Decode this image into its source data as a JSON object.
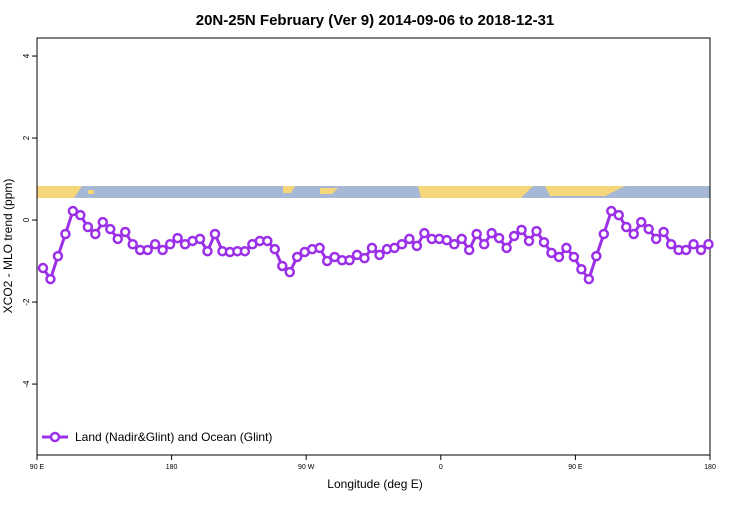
{
  "chart_data": {
    "type": "line",
    "title": "20N-25N February (Ver 9)   2014-09-06 to 2018-12-31",
    "x_label": "Longitude (deg E)",
    "y_label": "XCO2 - MLO trend (ppm)",
    "x": [
      94,
      99,
      104,
      109,
      114,
      119,
      124,
      129,
      134,
      139,
      144,
      149,
      154,
      159,
      164,
      169,
      174,
      179,
      184,
      189,
      194,
      199,
      204,
      209,
      214,
      219,
      224,
      229,
      234,
      239,
      244,
      249,
      254,
      259,
      264,
      269,
      274,
      279,
      284,
      289,
      294,
      299,
      304,
      309,
      314,
      319,
      324,
      329,
      334,
      339,
      344,
      349,
      354,
      359,
      364,
      369,
      374,
      379,
      384,
      389,
      394,
      399,
      404,
      409,
      414,
      419,
      424,
      429,
      434,
      439,
      444,
      449,
      454,
      459,
      464,
      469,
      474,
      479,
      484,
      489,
      494,
      499,
      504,
      509,
      514,
      519,
      524,
      529,
      534,
      539
    ],
    "series": [
      {
        "name": "Land (Nadir&Glint) and Ocean (Glint)",
        "color": "#9b30e8",
        "values": [
          -1.17,
          -1.44,
          -0.88,
          -0.34,
          0.22,
          0.12,
          -0.17,
          -0.34,
          -0.05,
          -0.22,
          -0.46,
          -0.29,
          -0.59,
          -0.73,
          -0.73,
          -0.59,
          -0.73,
          -0.59,
          -0.44,
          -0.59,
          -0.51,
          -0.46,
          -0.76,
          -0.34,
          -0.76,
          -0.78,
          -0.76,
          -0.76,
          -0.59,
          -0.51,
          -0.51,
          -0.71,
          -1.12,
          -1.27,
          -0.9,
          -0.78,
          -0.71,
          -0.68,
          -1.0,
          -0.9,
          -0.98,
          -0.98,
          -0.85,
          -0.93,
          -0.68,
          -0.85,
          -0.71,
          -0.68,
          -0.59,
          -0.46,
          -0.63,
          -0.32,
          -0.46,
          -0.46,
          -0.49,
          -0.59,
          -0.46,
          -0.73,
          -0.34,
          -0.59,
          -0.32,
          -0.44,
          -0.68,
          -0.39,
          -0.24,
          -0.51,
          -0.27,
          -0.54,
          -0.8,
          -0.9,
          -0.68,
          -0.9,
          -1.2,
          -1.44,
          -0.88,
          -0.34,
          0.22,
          0.12,
          -0.17,
          -0.34,
          -0.05,
          -0.22,
          -0.46,
          -0.29,
          -0.59,
          -0.73,
          -0.73,
          -0.59,
          -0.73,
          -0.59
        ]
      }
    ],
    "xlim": [
      90,
      540
    ],
    "xticks": [
      {
        "value": 90,
        "label": "90 E"
      },
      180,
      {
        "value": 270,
        "label": "90 W"
      },
      {
        "value": 360,
        "label": "0"
      },
      {
        "value": 450,
        "label": "90 E"
      },
      {
        "value": 540,
        "label": "180"
      }
    ],
    "ylim": [
      -5.73,
      4.44
    ],
    "yticks": [
      -4,
      -2,
      0,
      2,
      4
    ],
    "legend": "bottom-left"
  }
}
